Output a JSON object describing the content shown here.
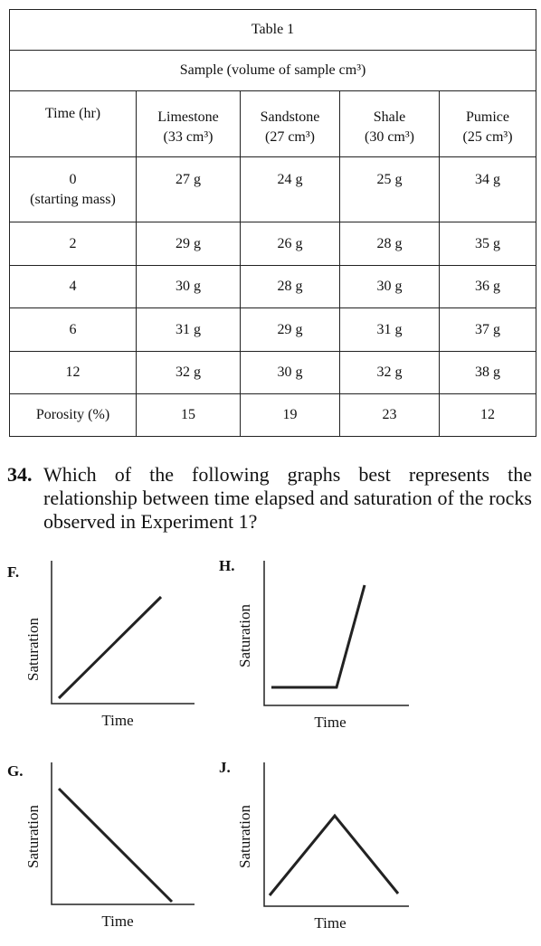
{
  "table": {
    "title": "Table 1",
    "group_header": "Sample (volume of sample cm³)",
    "time_header": "Time (hr)",
    "columns": [
      {
        "name": "Limestone",
        "volume": "(33 cm³)"
      },
      {
        "name": "Sandstone",
        "volume": "(27 cm³)"
      },
      {
        "name": "Shale",
        "volume": "(30 cm³)"
      },
      {
        "name": "Pumice",
        "volume": "(25 cm³)"
      }
    ],
    "rows": [
      {
        "cells": [
          "0",
          "27 g",
          "24 g",
          "25 g",
          "34 g"
        ],
        "note": "(starting mass)"
      },
      {
        "cells": [
          "2",
          "29 g",
          "26 g",
          "28 g",
          "35 g"
        ]
      },
      {
        "cells": [
          "4",
          "30 g",
          "28 g",
          "30 g",
          "36 g"
        ]
      },
      {
        "cells": [
          "6",
          "31 g",
          "29 g",
          "31 g",
          "37 g"
        ]
      },
      {
        "cells": [
          "12",
          "32 g",
          "30 g",
          "32 g",
          "38 g"
        ]
      },
      {
        "cells": [
          "Porosity (%)",
          "15",
          "19",
          "23",
          "12"
        ]
      }
    ]
  },
  "question": {
    "number": "34.",
    "text": "Which of the following graphs best represents the relationship between time elapsed and saturation of the rocks observed in Experiment 1?"
  },
  "graphs": [
    {
      "label": "F.",
      "y_label": "Saturation",
      "x_label": "Time"
    },
    {
      "label": "H.",
      "y_label": "Saturation",
      "x_label": "Time"
    },
    {
      "label": "G.",
      "y_label": "Saturation",
      "x_label": "Time"
    },
    {
      "label": "J.",
      "y_label": "Saturation",
      "x_label": "Time"
    }
  ]
}
